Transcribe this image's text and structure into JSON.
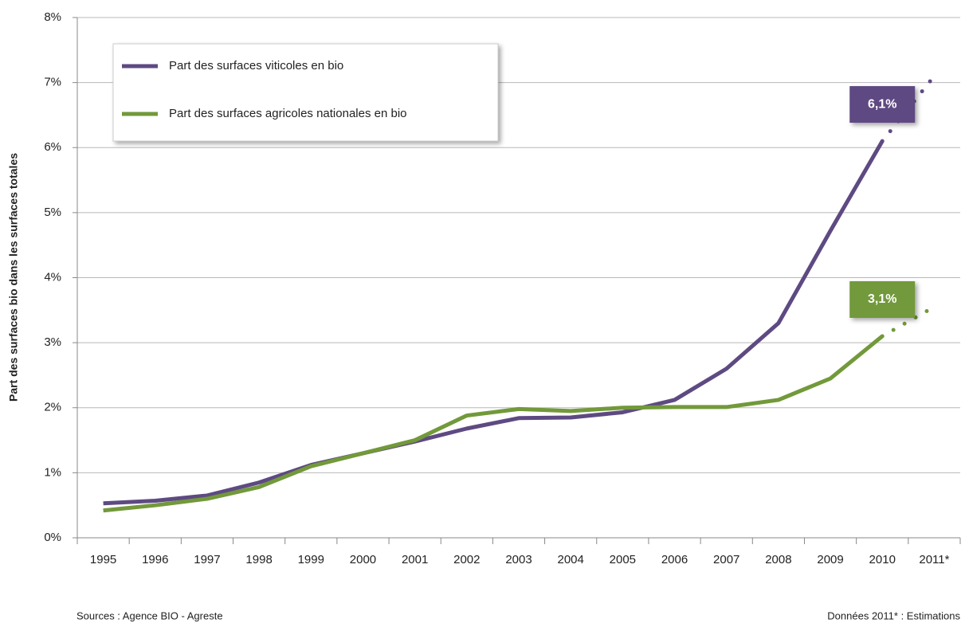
{
  "chart_data": {
    "type": "line",
    "y_axis_label": "Part des surfaces bio dans les surfaces totales",
    "categories": [
      "1995",
      "1996",
      "1997",
      "1998",
      "1999",
      "2000",
      "2001",
      "2002",
      "2003",
      "2004",
      "2005",
      "2006",
      "2007",
      "2008",
      "2009",
      "2010",
      "2011*"
    ],
    "series": [
      {
        "name": "Part des surfaces viticoles en bio",
        "color": "#5e4a82",
        "values": [
          0.53,
          0.57,
          0.65,
          0.85,
          1.12,
          1.3,
          1.48,
          1.68,
          1.84,
          1.85,
          1.93,
          2.12,
          2.6,
          3.3,
          4.72,
          6.1,
          7.1
        ],
        "value_labels": [
          null,
          null,
          null,
          null,
          null,
          null,
          null,
          null,
          null,
          null,
          null,
          null,
          null,
          null,
          null,
          "6,1%",
          null
        ]
      },
      {
        "name": "Part des surfaces agricoles nationales en bio",
        "color": "#72993a",
        "values": [
          0.42,
          0.5,
          0.6,
          0.78,
          1.1,
          1.3,
          1.5,
          1.88,
          1.98,
          1.95,
          2.0,
          2.01,
          2.01,
          2.12,
          2.45,
          3.1,
          3.55
        ],
        "value_labels": [
          null,
          null,
          null,
          null,
          null,
          null,
          null,
          null,
          null,
          null,
          null,
          null,
          null,
          null,
          null,
          "3,1%",
          null
        ]
      }
    ],
    "last_segment_style": "dotted",
    "ylim": [
      0,
      8
    ],
    "yticks": [
      {
        "value": 0,
        "label": "0%"
      },
      {
        "value": 1,
        "label": "1%"
      },
      {
        "value": 2,
        "label": "2%"
      },
      {
        "value": 3,
        "label": "3%"
      },
      {
        "value": 4,
        "label": "4%"
      },
      {
        "value": 5,
        "label": "5%"
      },
      {
        "value": 6,
        "label": "6%"
      },
      {
        "value": 7,
        "label": "7%"
      },
      {
        "value": 8,
        "label": "8%"
      }
    ],
    "grid": true,
    "legend": "top-left",
    "source": "Sources : Agence BIO - Agreste",
    "note": "Données 2011* : Estimations"
  }
}
